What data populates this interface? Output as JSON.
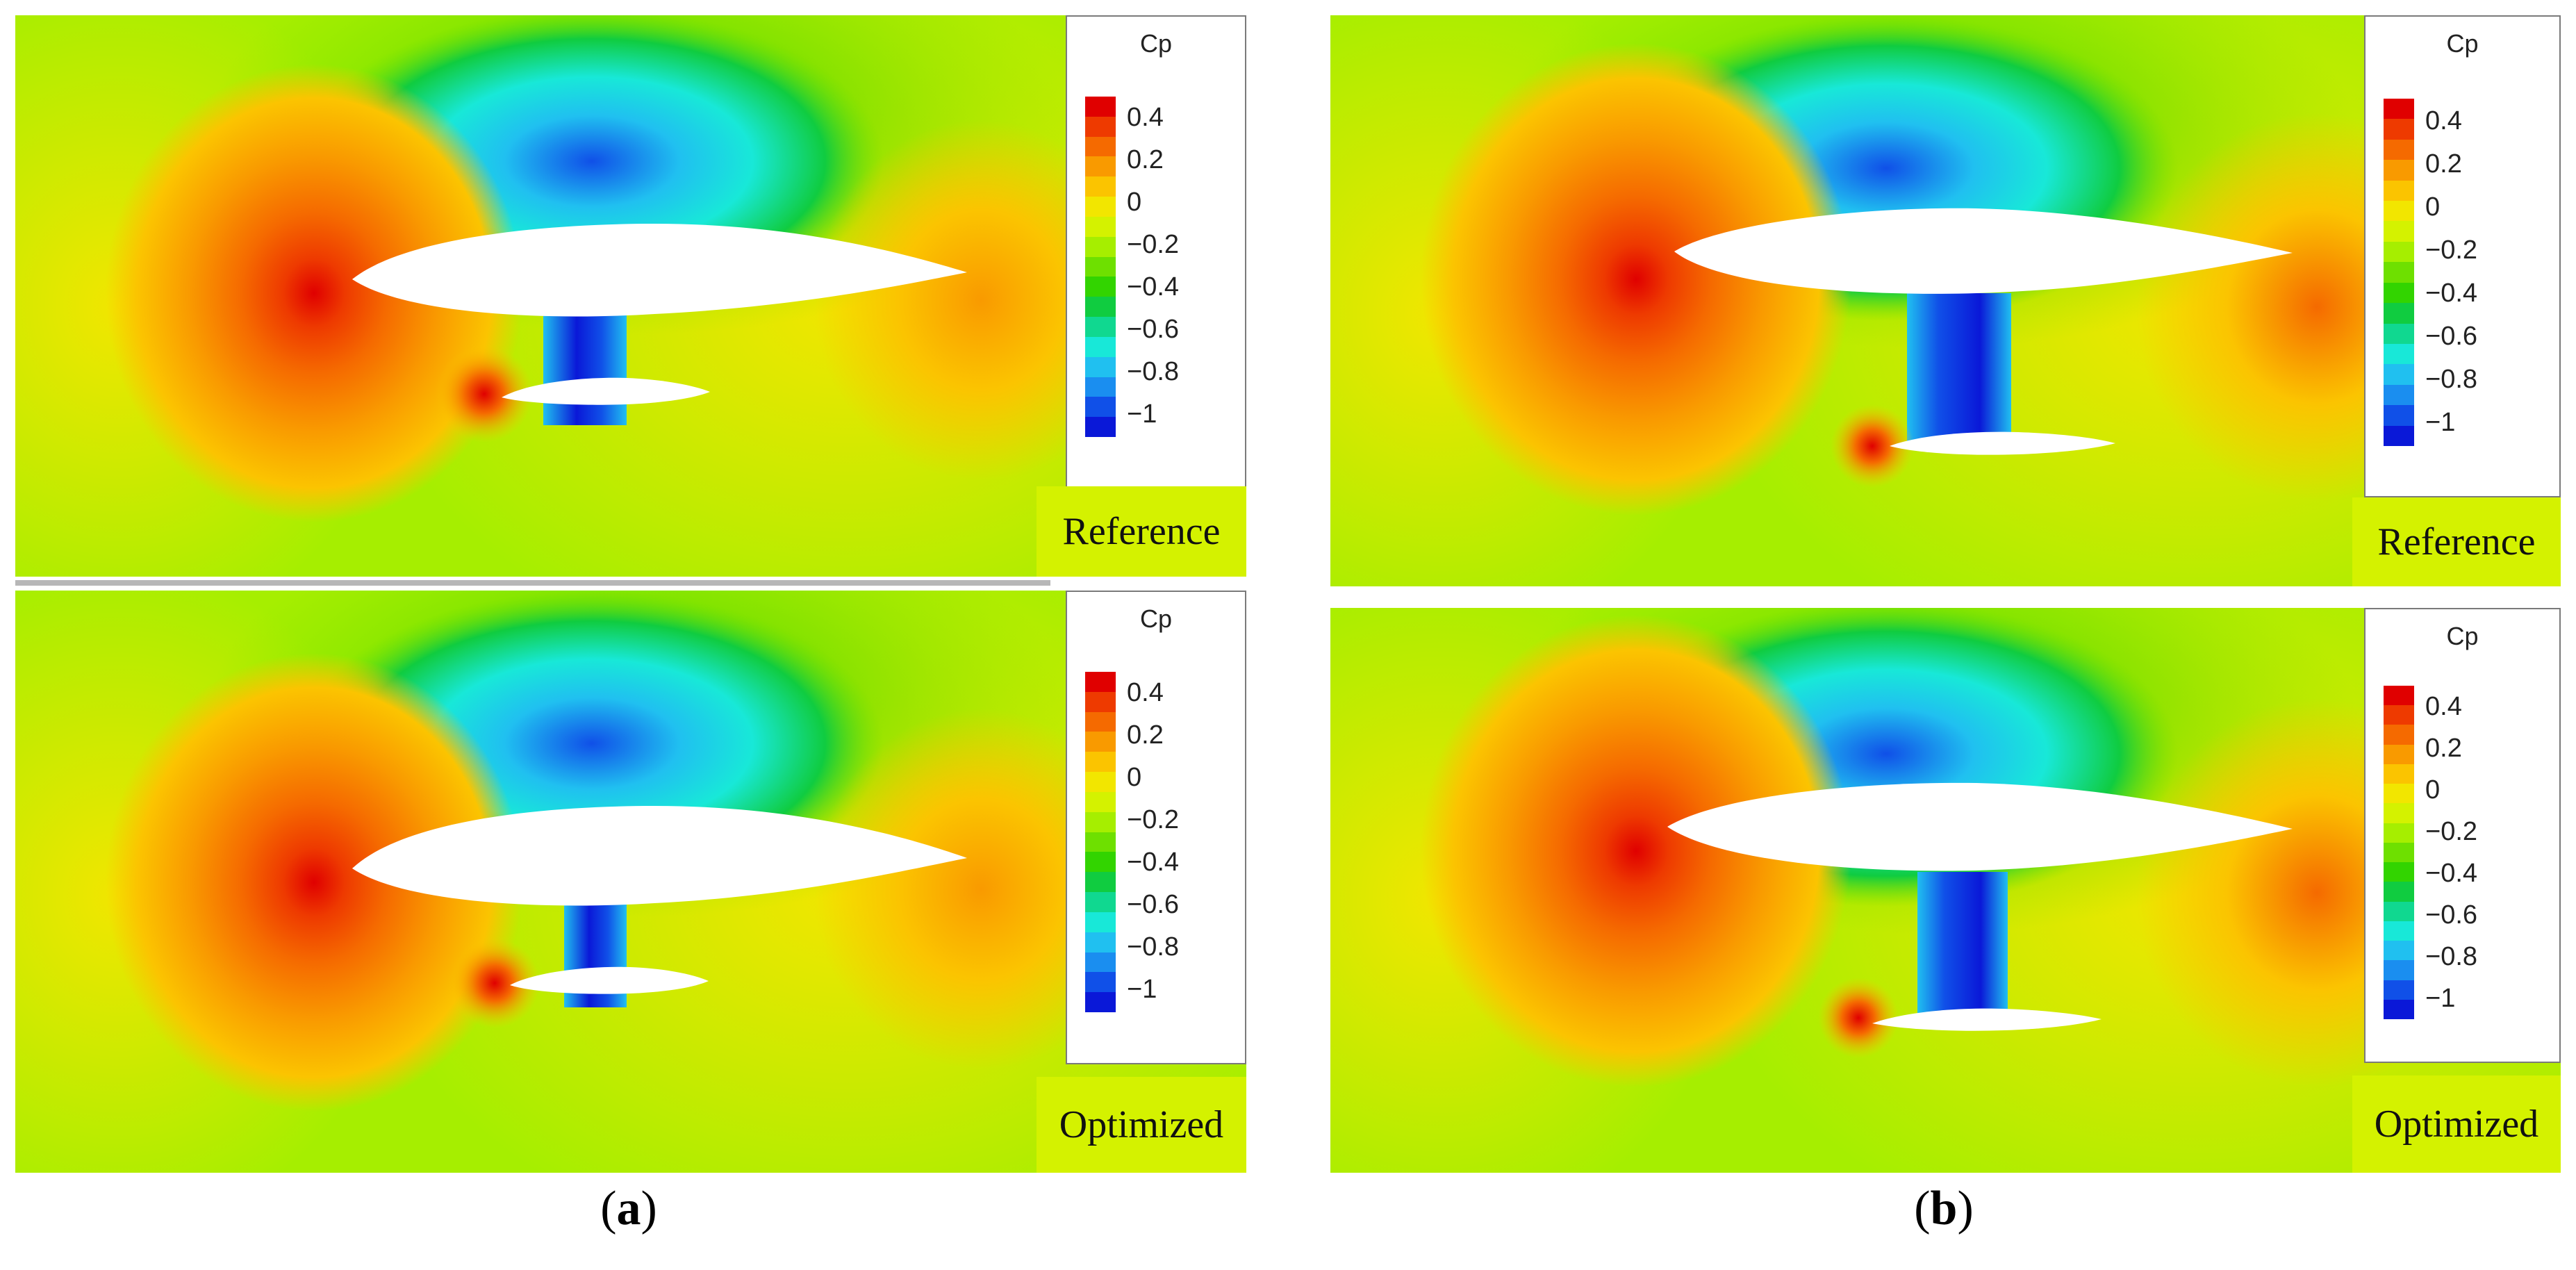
{
  "figure": {
    "subfigures": [
      {
        "id": "a",
        "caption_letter": "a",
        "panels": [
          {
            "label": "Reference",
            "colorbar": {
              "title": "Cp",
              "ticks": [
                "0.4",
                "0.2",
                "0",
                "−0.2",
                "−0.4",
                "−0.6",
                "−0.8",
                "−1"
              ]
            }
          },
          {
            "label": "Optimized",
            "colorbar": {
              "title": "Cp",
              "ticks": [
                "0.4",
                "0.2",
                "0",
                "−0.2",
                "−0.4",
                "−0.6",
                "−0.8",
                "−1"
              ]
            }
          }
        ]
      },
      {
        "id": "b",
        "caption_letter": "b",
        "panels": [
          {
            "label": "Reference",
            "colorbar": {
              "title": "Cp",
              "ticks": [
                "0.4",
                "0.2",
                "0",
                "−0.2",
                "−0.4",
                "−0.6",
                "−0.8",
                "−1"
              ]
            }
          },
          {
            "label": "Optimized",
            "colorbar": {
              "title": "Cp",
              "ticks": [
                "0.4",
                "0.2",
                "0",
                "−0.2",
                "−0.4",
                "−0.6",
                "−0.8",
                "−1"
              ]
            }
          }
        ]
      }
    ],
    "colormap": [
      "#e00000",
      "#ee3a00",
      "#f56a00",
      "#f99a00",
      "#fbc400",
      "#f2e600",
      "#d4f200",
      "#a6ee00",
      "#6ee000",
      "#32d400",
      "#10cc40",
      "#10d890",
      "#18e8d8",
      "#20c0f0",
      "#1a8ef0",
      "#1050e8",
      "#0a18d8"
    ],
    "caption_open": "(",
    "caption_close": ")"
  }
}
